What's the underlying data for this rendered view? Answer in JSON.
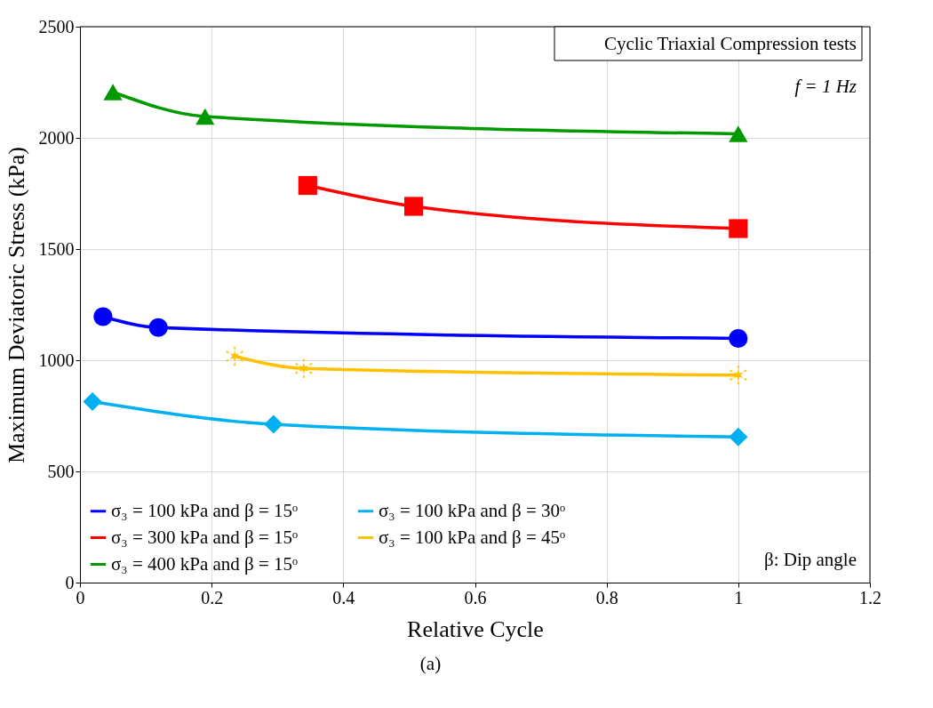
{
  "chart_data": {
    "type": "line",
    "xlabel": "Relative Cycle",
    "ylabel": "Maximum Deviatoric Stress (kPa)",
    "xlim": [
      0,
      1.2
    ],
    "xticks": [
      0,
      0.2,
      0.4,
      0.6,
      0.8,
      1,
      1.2
    ],
    "ylim": [
      0,
      2500
    ],
    "yticks": [
      0,
      500,
      1000,
      1500,
      2000,
      2500
    ],
    "grid": true,
    "legend": "bottom left",
    "line_style": "solid",
    "series": [
      {
        "name": "σ₃ = 100 kPa and β = 15ᵒ",
        "color": "#0000ff",
        "marker": "circle",
        "x": [
          0.035,
          0.119,
          1.0
        ],
        "values": [
          1196,
          1147,
          1098
        ]
      },
      {
        "name": "σ₃ = 300 kPa and β = 15ᵒ",
        "color": "#ff0000",
        "marker": "square",
        "x": [
          0.346,
          0.507,
          1.0
        ],
        "values": [
          1786,
          1692,
          1592
        ]
      },
      {
        "name": "σ₃ = 400 kPa and β = 15ᵒ",
        "color": "#009900",
        "marker": "triangle",
        "x": [
          0.05,
          0.19,
          1.0
        ],
        "values": [
          2206,
          2096,
          2018
        ]
      },
      {
        "name": "σ₃ = 100 kPa and β = 30ᵒ",
        "color": "#00b0f0",
        "marker": "diamond",
        "x": [
          0.019,
          0.294,
          1.0
        ],
        "values": [
          814,
          712,
          655
        ]
      },
      {
        "name": "σ₃ = 100 kPa and β = 45ᵒ",
        "color": "#ffc000",
        "marker": "cross",
        "x": [
          0.235,
          0.34,
          1.0
        ],
        "values": [
          1018,
          963,
          933
        ]
      }
    ],
    "annotations": [
      "Cyclic Triaxial Compression tests",
      "f = 1 Hz",
      "β: Dip angle",
      "(a)"
    ]
  }
}
